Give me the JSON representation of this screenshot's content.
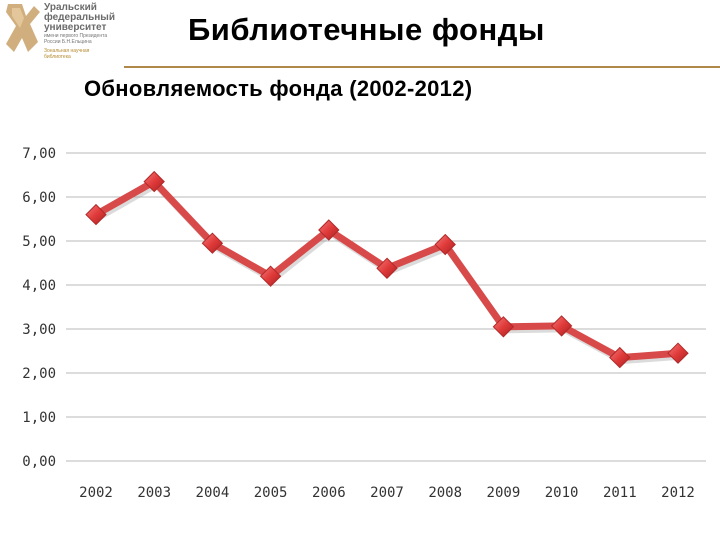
{
  "header": {
    "title": "Библиотечные фонды",
    "subtitle": "Обновляемость фонда (2002-2012)"
  },
  "logo": {
    "line1": "Уральский",
    "line2": "федеральный",
    "line3": "университет",
    "line4": "имени первого Президента",
    "line5": "России Б.Н.Ельцина",
    "line6": "Зональная научная",
    "line7": "библиотека"
  },
  "colors": {
    "series": "#d84a4a",
    "marker": "#e04040",
    "grid": "#b8b8b8",
    "accent": "#b0894a"
  },
  "chart_data": {
    "type": "line",
    "categories": [
      "2002",
      "2003",
      "2004",
      "2005",
      "2006",
      "2007",
      "2008",
      "2009",
      "2010",
      "2011",
      "2012"
    ],
    "series": [
      {
        "values": [
          5.6,
          6.35,
          4.95,
          4.2,
          5.25,
          4.38,
          4.92,
          3.05,
          3.07,
          2.35,
          2.45
        ]
      }
    ],
    "yticks": [
      "0,00",
      "1,00",
      "2,00",
      "3,00",
      "4,00",
      "5,00",
      "6,00",
      "7,00"
    ],
    "ylim": [
      0,
      7
    ],
    "grid": true,
    "marker": "diamond"
  }
}
